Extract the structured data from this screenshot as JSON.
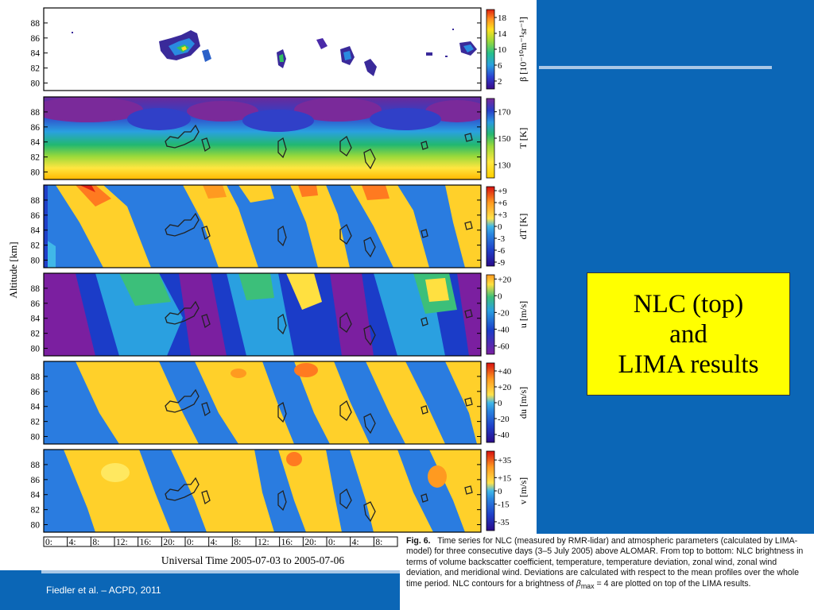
{
  "chart_data": {
    "type": "heatmap",
    "ylabel": "Altitude [km]",
    "xlabel": "Universal Time 2005-07-03 to 2005-07-06",
    "x_ticks": [
      "0:",
      "4:",
      "8:",
      "12:",
      "16:",
      "20:",
      "0:",
      "4:",
      "8:",
      "12:",
      "16:",
      "20:",
      "0:",
      "4:",
      "8:"
    ],
    "y_ticks": [
      "88",
      "86",
      "84",
      "82",
      "80"
    ],
    "ylim": [
      79,
      90
    ],
    "panels": [
      {
        "id": "nlc",
        "colorbar_label": "β [10⁻¹⁰m⁻¹sr⁻¹]",
        "colorbar_ticks": [
          "18",
          "14",
          "10",
          "6",
          "2"
        ],
        "colorbar_range": [
          0,
          20
        ]
      },
      {
        "id": "temperature",
        "colorbar_label": "T [K]",
        "colorbar_ticks": [
          "170",
          "150",
          "130"
        ],
        "colorbar_range": [
          120,
          180
        ]
      },
      {
        "id": "temperature-deviation",
        "colorbar_label": "dT [K]",
        "colorbar_ticks": [
          "+9",
          "+6",
          "+3",
          "0",
          "-3",
          "-6",
          "-9"
        ],
        "colorbar_range": [
          -10,
          10
        ]
      },
      {
        "id": "zonal-wind",
        "colorbar_label": "u [m/s]",
        "colorbar_ticks": [
          "+20",
          "0",
          "-20",
          "-40",
          "-60"
        ],
        "colorbar_range": [
          -70,
          25
        ]
      },
      {
        "id": "zonal-wind-deviation",
        "colorbar_label": "du [m/s]",
        "colorbar_ticks": [
          "+40",
          "+20",
          "0",
          "-20",
          "-40"
        ],
        "colorbar_range": [
          -50,
          50
        ]
      },
      {
        "id": "meridional-wind",
        "colorbar_label": "v [m/s]",
        "colorbar_ticks": [
          "+35",
          "+15",
          "0",
          "-15",
          "-35"
        ],
        "colorbar_range": [
          -45,
          45
        ]
      }
    ]
  },
  "callout": {
    "line1": "NLC (top)",
    "line2": "and",
    "line3": "LIMA results"
  },
  "caption": {
    "label": "Fig. 6.",
    "text": "Time series for NLC (measured by RMR-lidar) and atmospheric parameters (calculated by LIMA-model) for three consecutive days (3–5 July 2005) above ALOMAR. From top to bottom: NLC brightness in terms of volume backscatter coefficient, temperature, temperature deviation, zonal wind, zonal wind deviation, and meridional wind. Deviations are calculated with respect to the mean profiles over the whole time period. NLC contours for a brightness of",
    "beta_symbol": "β",
    "beta_sub": "max",
    "beta_tail": " = 4 are plotted on top of the LIMA results."
  },
  "footer": {
    "citation": "Fiedler et al. – ACPD, 2011"
  },
  "colors": {
    "background": "#0b66b6",
    "callout": "#ffff00"
  }
}
